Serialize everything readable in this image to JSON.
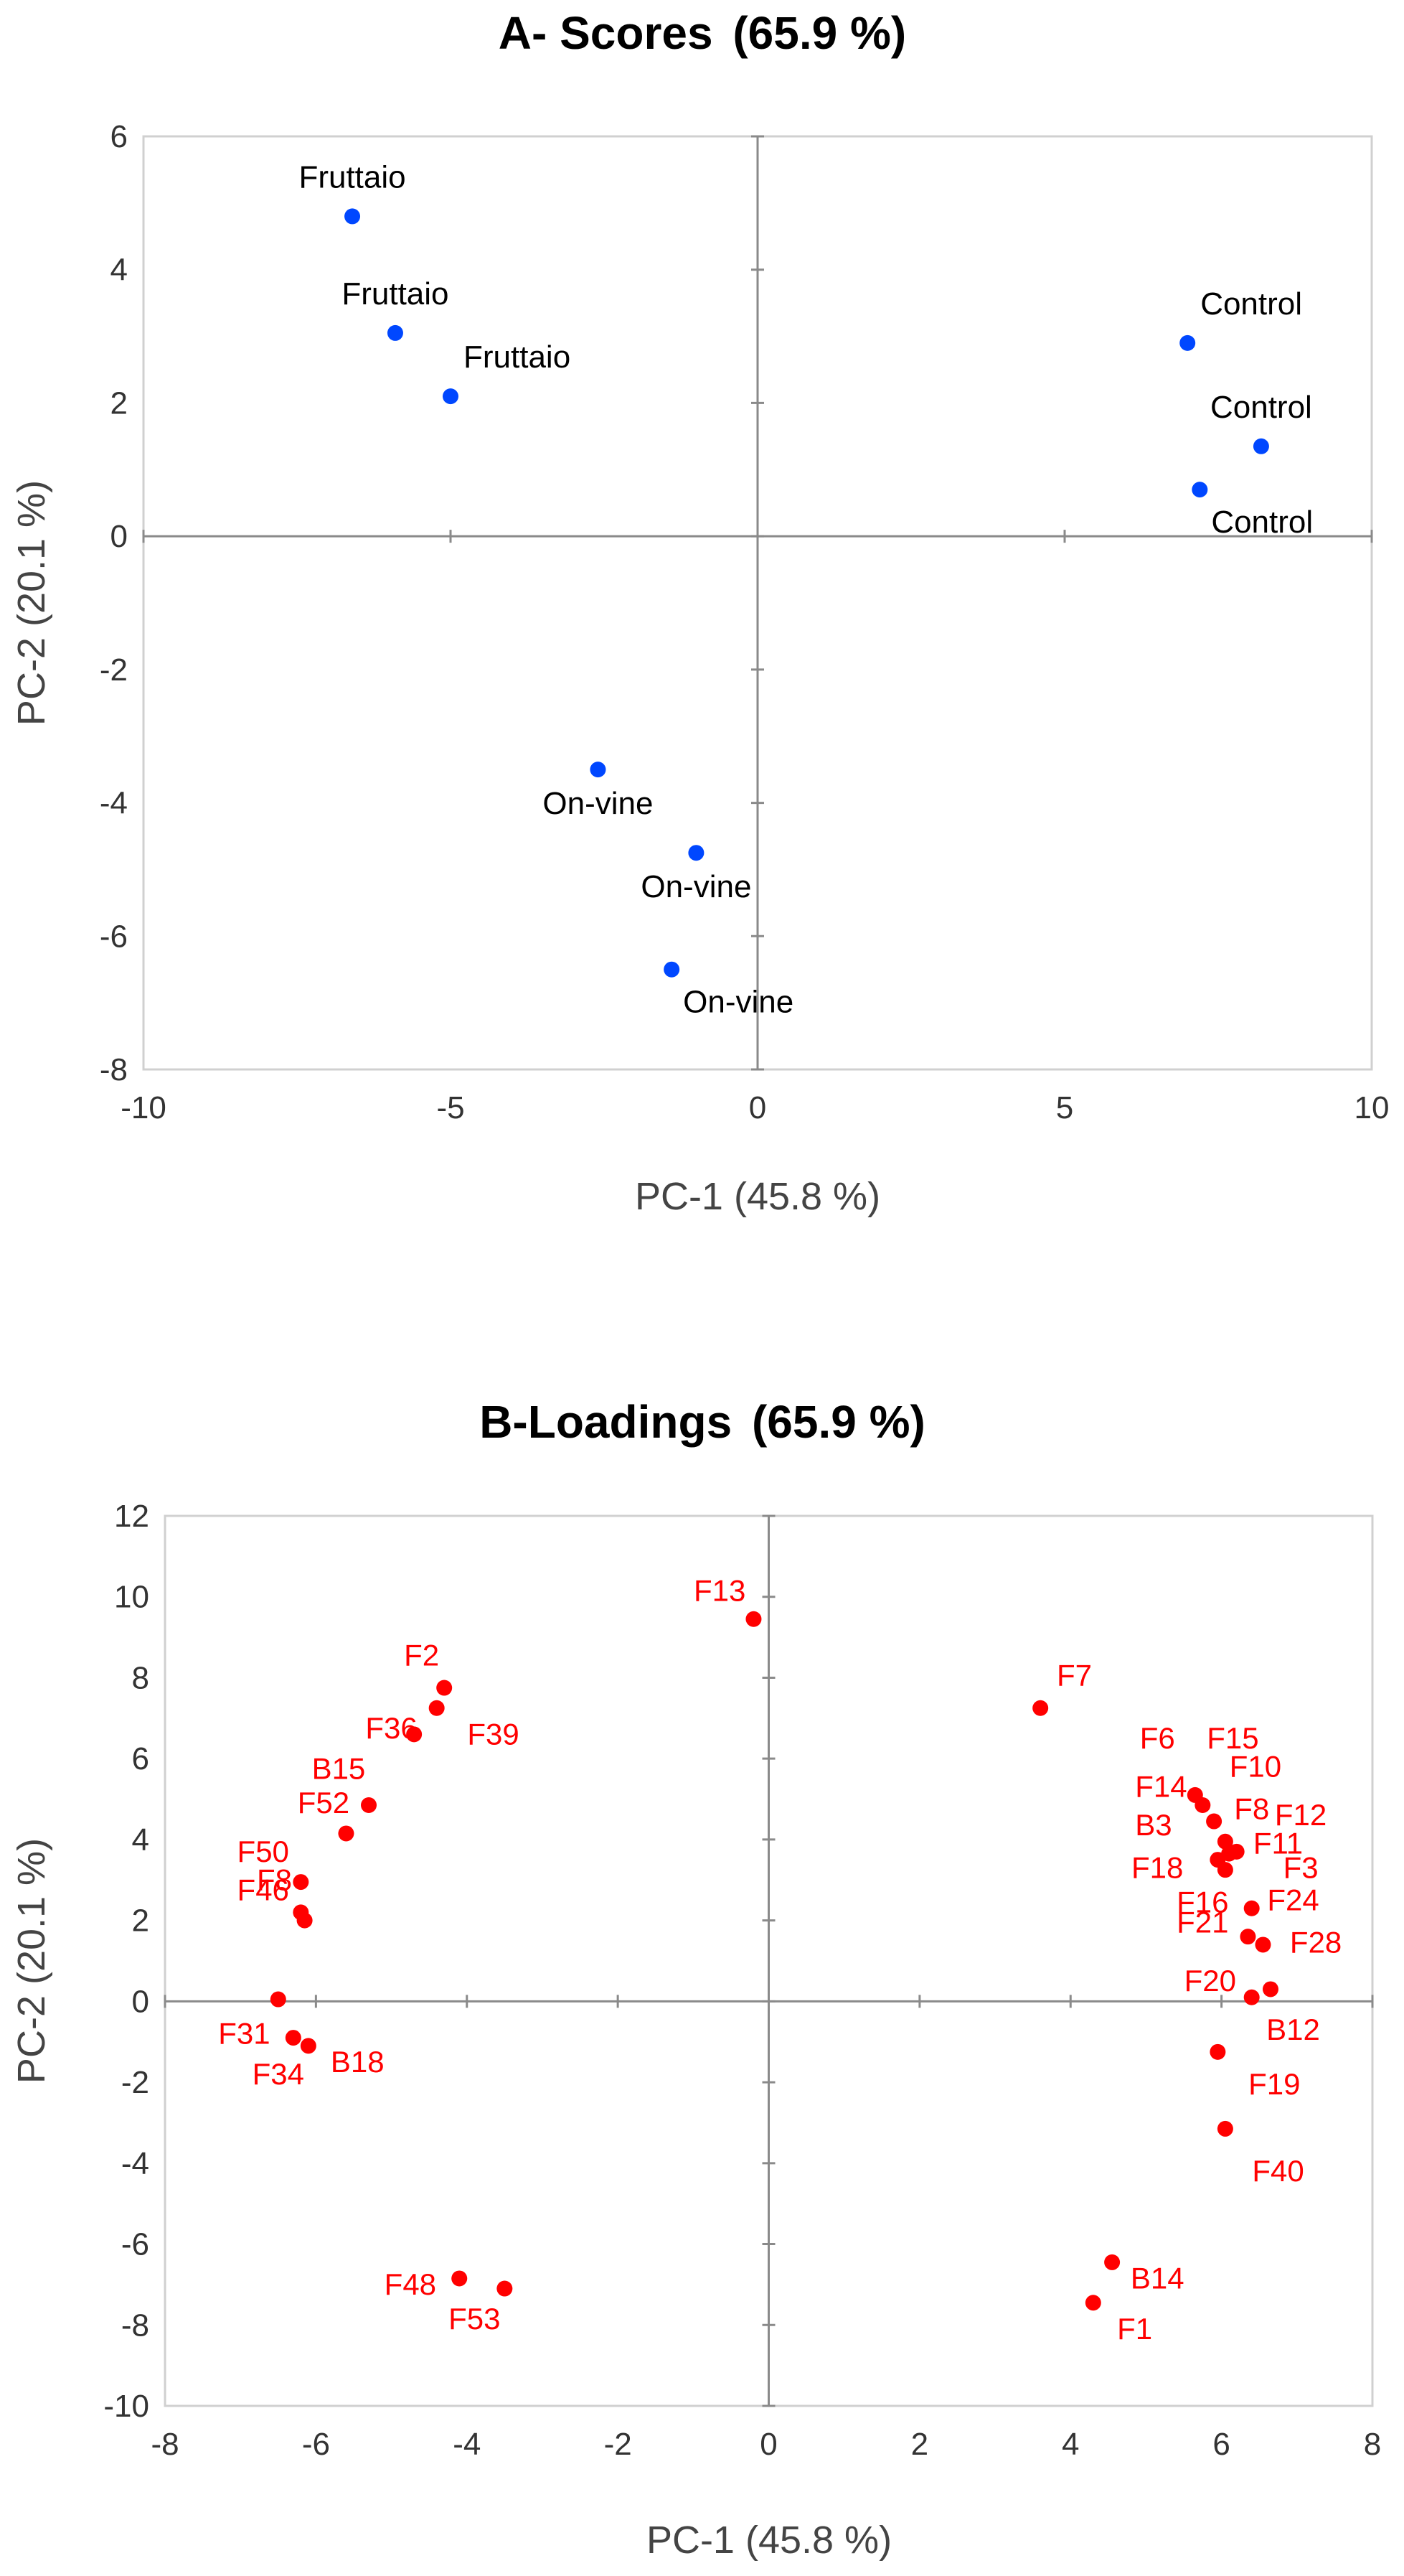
{
  "chart_data": [
    {
      "type": "scatter",
      "title": "A- Scores",
      "title_pct": "(65.9 %)",
      "xlabel": "PC-1 (45.8 %)",
      "ylabel": "PC-2 (20.1 %)",
      "xlim": [
        -10,
        10
      ],
      "ylim": [
        -8,
        6
      ],
      "xticks": [
        -10,
        -5,
        0,
        5,
        10
      ],
      "yticks": [
        -8,
        -6,
        -4,
        -2,
        0,
        2,
        4,
        6
      ],
      "grid": false,
      "point_color": "#0047FF",
      "label_color": "#000000",
      "points": [
        {
          "label": "Fruttaio",
          "x": -6.6,
          "y": 4.8,
          "pos": "above"
        },
        {
          "label": "Fruttaio",
          "x": -5.9,
          "y": 3.05,
          "pos": "above"
        },
        {
          "label": "Fruttaio",
          "x": -5.0,
          "y": 2.1,
          "pos": "above-right"
        },
        {
          "label": "Control",
          "x": 7.0,
          "y": 2.9,
          "pos": "above-right"
        },
        {
          "label": "Control",
          "x": 8.2,
          "y": 1.35,
          "pos": "above"
        },
        {
          "label": "Control",
          "x": 7.2,
          "y": 0.7,
          "pos": "below-right"
        },
        {
          "label": "On-vine",
          "x": -2.6,
          "y": -3.5,
          "pos": "below"
        },
        {
          "label": "On-vine",
          "x": -1.0,
          "y": -4.75,
          "pos": "below"
        },
        {
          "label": "On-vine",
          "x": -1.4,
          "y": -6.5,
          "pos": "below-right"
        }
      ]
    },
    {
      "type": "scatter",
      "title": "B-Loadings",
      "title_pct": "(65.9 %)",
      "xlabel": "PC-1 (45.8 %)",
      "ylabel": "PC-2 (20.1 %)",
      "xlim": [
        -8,
        8
      ],
      "ylim": [
        -10,
        12
      ],
      "xticks": [
        -8,
        -6,
        -4,
        -2,
        0,
        2,
        4,
        6,
        8
      ],
      "yticks": [
        -10,
        -8,
        -6,
        -4,
        -2,
        0,
        2,
        4,
        6,
        8,
        10,
        12
      ],
      "grid": false,
      "point_color": "#FF0000",
      "label_color": "#FF0000",
      "points": [
        {
          "x": -0.2,
          "y": 9.45
        },
        {
          "x": -4.3,
          "y": 7.75
        },
        {
          "x": -4.4,
          "y": 7.25
        },
        {
          "x": -4.7,
          "y": 6.6
        },
        {
          "x": -5.3,
          "y": 4.85
        },
        {
          "x": -5.6,
          "y": 4.15
        },
        {
          "x": -6.2,
          "y": 2.95
        },
        {
          "x": -6.2,
          "y": 2.2
        },
        {
          "x": -6.15,
          "y": 2.0
        },
        {
          "x": -6.5,
          "y": 0.05
        },
        {
          "x": -6.3,
          "y": -0.9
        },
        {
          "x": -6.1,
          "y": -1.1
        },
        {
          "x": -4.1,
          "y": -6.85
        },
        {
          "x": -3.5,
          "y": -7.1
        },
        {
          "x": 3.6,
          "y": 7.25
        },
        {
          "x": 5.65,
          "y": 5.1
        },
        {
          "x": 5.75,
          "y": 4.85
        },
        {
          "x": 5.9,
          "y": 4.45
        },
        {
          "x": 6.05,
          "y": 3.95
        },
        {
          "x": 6.2,
          "y": 3.7
        },
        {
          "x": 6.1,
          "y": 3.65
        },
        {
          "x": 5.95,
          "y": 3.5
        },
        {
          "x": 6.05,
          "y": 3.25
        },
        {
          "x": 6.4,
          "y": 2.3
        },
        {
          "x": 6.35,
          "y": 1.6
        },
        {
          "x": 6.55,
          "y": 1.4
        },
        {
          "x": 6.65,
          "y": 0.3
        },
        {
          "x": 6.4,
          "y": 0.1
        },
        {
          "x": 5.95,
          "y": -1.25
        },
        {
          "x": 6.05,
          "y": -3.15
        },
        {
          "x": 4.55,
          "y": -6.45
        },
        {
          "x": 4.3,
          "y": -7.45
        }
      ],
      "labels": [
        {
          "text": "F13",
          "x": -0.65,
          "y": 10.15
        },
        {
          "text": "F2",
          "x": -4.6,
          "y": 8.55
        },
        {
          "text": "F36",
          "x": -5.0,
          "y": 6.75
        },
        {
          "text": "F39",
          "x": -3.65,
          "y": 6.6
        },
        {
          "text": "B15",
          "x": -5.7,
          "y": 5.75
        },
        {
          "text": "F52",
          "x": -5.9,
          "y": 4.9
        },
        {
          "text": "F50",
          "x": -6.7,
          "y": 3.7
        },
        {
          "text": "F8",
          "x": -6.55,
          "y": 3.0
        },
        {
          "text": "F46",
          "x": -6.7,
          "y": 2.75
        },
        {
          "text": "F31",
          "x": -6.95,
          "y": -0.8
        },
        {
          "text": "F34",
          "x": -6.5,
          "y": -1.8
        },
        {
          "text": "B18",
          "x": -5.45,
          "y": -1.5
        },
        {
          "text": "F48",
          "x": -4.75,
          "y": -7.0
        },
        {
          "text": "F53",
          "x": -3.9,
          "y": -7.85
        },
        {
          "text": "F7",
          "x": 4.05,
          "y": 8.05
        },
        {
          "text": "F6",
          "x": 5.15,
          "y": 6.5
        },
        {
          "text": "F15",
          "x": 6.15,
          "y": 6.5
        },
        {
          "text": "F10",
          "x": 6.45,
          "y": 5.8
        },
        {
          "text": "F14",
          "x": 5.2,
          "y": 5.3
        },
        {
          "text": "F8",
          "x": 6.4,
          "y": 4.75
        },
        {
          "text": "F12",
          "x": 7.05,
          "y": 4.6
        },
        {
          "text": "B3",
          "x": 5.1,
          "y": 4.35
        },
        {
          "text": "F11",
          "x": 6.75,
          "y": 3.9
        },
        {
          "text": "F3",
          "x": 7.05,
          "y": 3.3
        },
        {
          "text": "F18",
          "x": 5.15,
          "y": 3.3
        },
        {
          "text": "F24",
          "x": 6.95,
          "y": 2.5
        },
        {
          "text": "F16",
          "x": 5.75,
          "y": 2.45
        },
        {
          "text": "F21",
          "x": 5.75,
          "y": 1.95
        },
        {
          "text": "F28",
          "x": 7.25,
          "y": 1.45
        },
        {
          "text": "F20",
          "x": 5.85,
          "y": 0.5
        },
        {
          "text": "B12",
          "x": 6.95,
          "y": -0.7
        },
        {
          "text": "F19",
          "x": 6.7,
          "y": -2.05
        },
        {
          "text": "F40",
          "x": 6.75,
          "y": -4.2
        },
        {
          "text": "B14",
          "x": 5.15,
          "y": -6.85
        },
        {
          "text": "F1",
          "x": 4.85,
          "y": -8.1
        }
      ]
    }
  ]
}
